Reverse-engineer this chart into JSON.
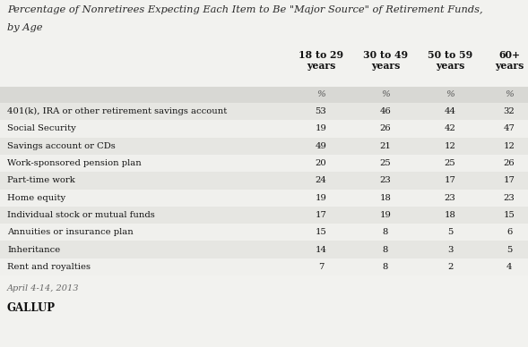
{
  "title_line1": "Percentage of Nonretirees Expecting Each Item to Be \"Major Source\" of Retirement Funds,",
  "title_line2": "by Age",
  "col_headers": [
    "18 to 29\nyears",
    "30 to 49\nyears",
    "50 to 59\nyears",
    "60+\nyears"
  ],
  "col_subheaders": [
    "%",
    "%",
    "%",
    "%"
  ],
  "rows": [
    {
      "label": "401(k), IRA or other retirement savings account",
      "values": [
        53,
        46,
        44,
        32
      ]
    },
    {
      "label": "Social Security",
      "values": [
        19,
        26,
        42,
        47
      ]
    },
    {
      "label": "Savings account or CDs",
      "values": [
        49,
        21,
        12,
        12
      ]
    },
    {
      "label": "Work-sponsored pension plan",
      "values": [
        20,
        25,
        25,
        26
      ]
    },
    {
      "label": "Part-time work",
      "values": [
        24,
        23,
        17,
        17
      ]
    },
    {
      "label": "Home equity",
      "values": [
        19,
        18,
        23,
        23
      ]
    },
    {
      "label": "Individual stock or mutual funds",
      "values": [
        17,
        19,
        18,
        15
      ]
    },
    {
      "label": "Annuities or insurance plan",
      "values": [
        15,
        8,
        5,
        6
      ]
    },
    {
      "label": "Inheritance",
      "values": [
        14,
        8,
        3,
        5
      ]
    },
    {
      "label": "Rent and royalties",
      "values": [
        7,
        8,
        2,
        4
      ]
    }
  ],
  "footer_date": "April 4-14, 2013",
  "footer_brand": "GALLUP",
  "bg_color": "#f2f2ef",
  "subheader_bg": "#d8d8d4",
  "row_colors": [
    "#e6e6e2",
    "#f0f0ed"
  ]
}
